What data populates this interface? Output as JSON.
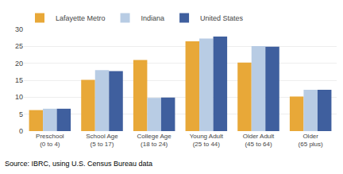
{
  "chart_data": {
    "type": "bar",
    "categories": [
      "Preschool\n(0 to 4)",
      "School Age\n(5 to 17)",
      "College Age\n(18 to 24)",
      "Young Adult\n(25 to 44)",
      "Older Adult\n(45 to 64)",
      "Older\n(65 plus)"
    ],
    "series": [
      {
        "name": "Lafayette Metro",
        "color": "#E8A838",
        "values": [
          6.2,
          15.1,
          21.0,
          26.5,
          20.2,
          10.2
        ]
      },
      {
        "name": "Indiana",
        "color": "#B8CCE4",
        "values": [
          6.6,
          18.0,
          9.8,
          27.3,
          25.1,
          12.2
        ]
      },
      {
        "name": "United States",
        "color": "#3F5F9E",
        "values": [
          6.6,
          17.7,
          9.9,
          27.9,
          24.9,
          12.2
        ]
      }
    ],
    "ylim": [
      0,
      30
    ],
    "yticks": [
      0,
      5,
      10,
      15,
      20,
      25,
      30
    ],
    "grid": true,
    "legend": "upper left",
    "annotations": [
      "Source: IBRC, using U.S. Census Bureau data"
    ]
  }
}
